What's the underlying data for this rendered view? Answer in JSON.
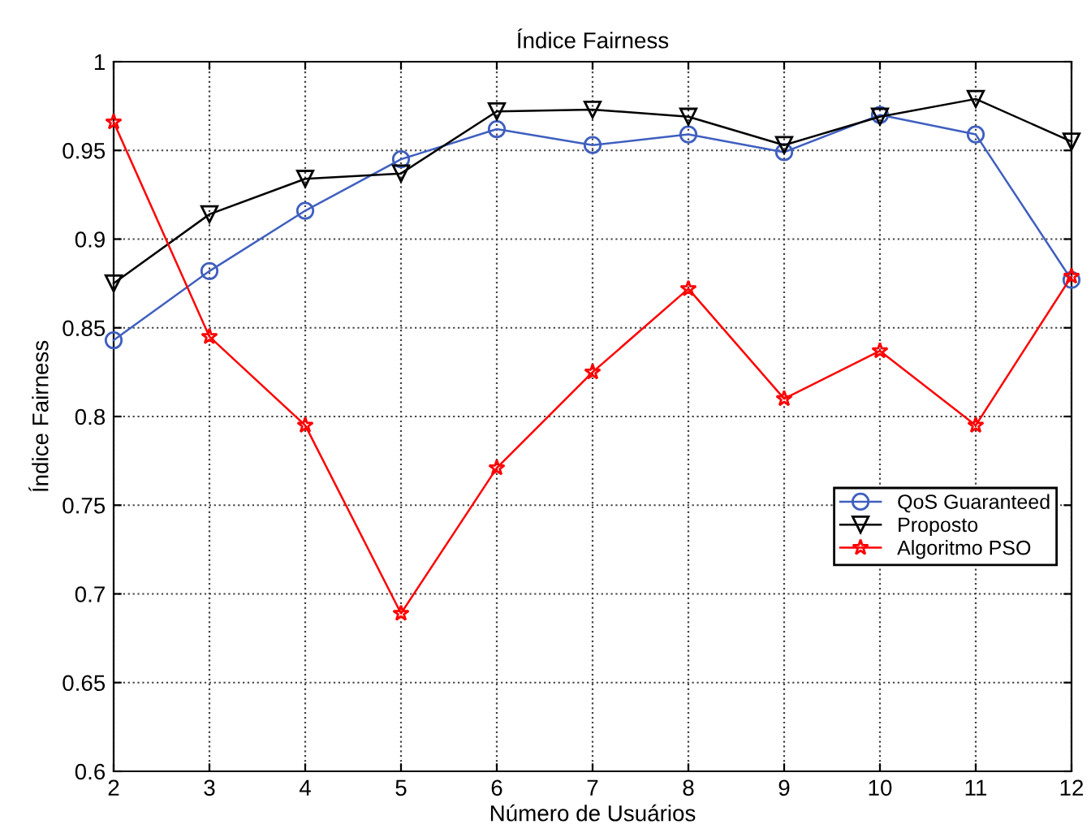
{
  "chart_data": {
    "type": "line",
    "title": "Índice Fairness",
    "xlabel": "Número de Usuários",
    "ylabel": "Índice Fairness",
    "x": [
      2,
      3,
      4,
      5,
      6,
      7,
      8,
      9,
      10,
      11,
      12
    ],
    "series": [
      {
        "name": "QoS Guaranteed",
        "color": "#3f5fbf",
        "marker": "circle",
        "values": [
          0.843,
          0.882,
          0.916,
          0.945,
          0.962,
          0.953,
          0.959,
          0.949,
          0.97,
          0.959,
          0.877
        ]
      },
      {
        "name": "Proposto",
        "color": "#000000",
        "marker": "triangle",
        "values": [
          0.875,
          0.914,
          0.934,
          0.937,
          0.972,
          0.973,
          0.969,
          0.953,
          0.969,
          0.979,
          0.955
        ]
      },
      {
        "name": "Algoritmo PSO",
        "color": "#ff0000",
        "marker": "star",
        "values": [
          0.966,
          0.845,
          0.795,
          0.689,
          0.771,
          0.825,
          0.872,
          0.81,
          0.837,
          0.795,
          0.879
        ]
      }
    ],
    "xlim": [
      2,
      12
    ],
    "xticks": [
      2,
      3,
      4,
      5,
      6,
      7,
      8,
      9,
      10,
      11,
      12
    ],
    "ylim": [
      0.6,
      1
    ],
    "yticks": [
      0.6,
      0.65,
      0.7,
      0.75,
      0.8,
      0.85,
      0.9,
      0.95,
      1
    ],
    "grid": true,
    "legend": "right",
    "line_style": "solid"
  }
}
